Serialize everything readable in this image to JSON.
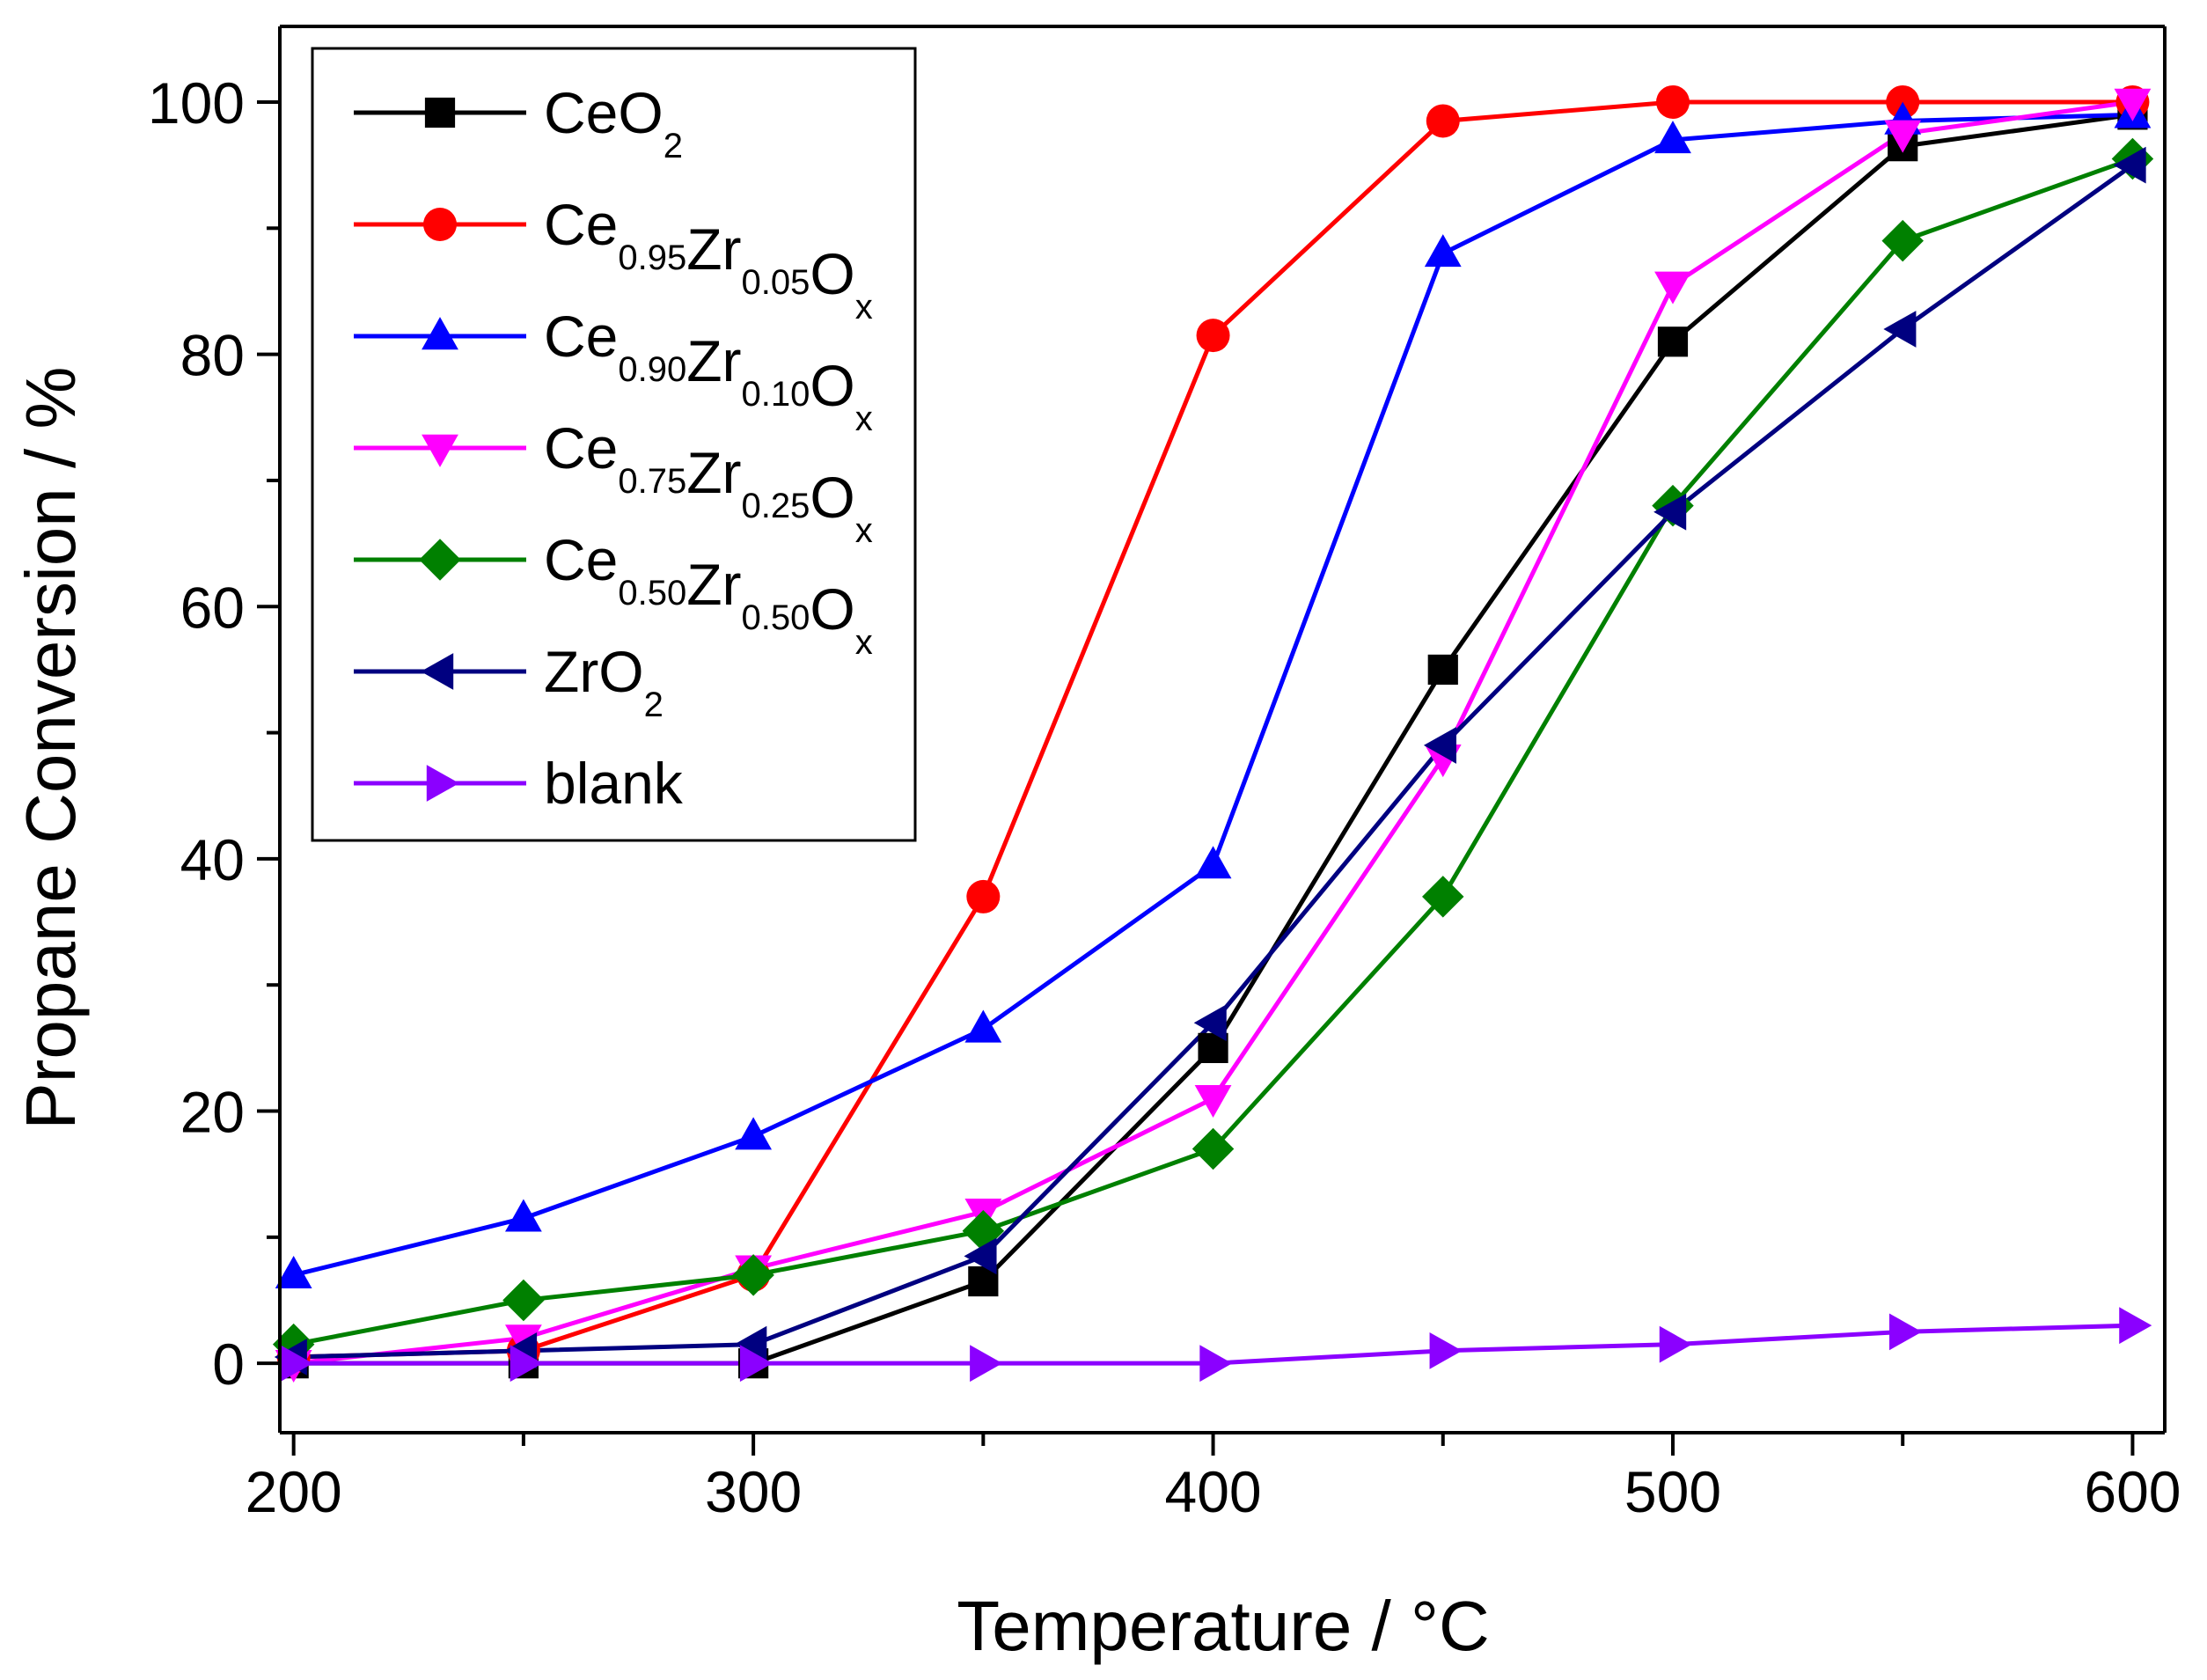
{
  "chart_data": {
    "type": "line",
    "title": "",
    "xlabel": "Temperature / °C",
    "ylabel": "Propane Conversion / %",
    "xlim": [
      197,
      607
    ],
    "ylim": [
      -5.5,
      106
    ],
    "xticks": [
      200,
      300,
      400,
      500,
      600
    ],
    "xticks_minor": [
      250,
      350,
      450,
      550
    ],
    "yticks": [
      0,
      20,
      40,
      60,
      80,
      100
    ],
    "yticks_minor": [
      10,
      30,
      50,
      70,
      90
    ],
    "x": [
      200,
      250,
      300,
      350,
      400,
      450,
      500,
      550,
      600
    ],
    "legend_position": "top-left",
    "series": [
      {
        "name": "CeO2",
        "label": [
          {
            "t": "CeO"
          },
          {
            "t": "2",
            "sub": true
          }
        ],
        "color": "#000000",
        "marker": "square",
        "values": [
          0,
          0,
          0,
          6.5,
          25,
          55,
          81,
          96.5,
          99
        ]
      },
      {
        "name": "Ce0.95Zr0.05Ox",
        "label": [
          {
            "t": "Ce"
          },
          {
            "t": "0.95",
            "sub": true
          },
          {
            "t": "Zr"
          },
          {
            "t": "0.05",
            "sub": true
          },
          {
            "t": "O"
          },
          {
            "t": "x",
            "sub": true
          }
        ],
        "color": "#ff0000",
        "marker": "circle",
        "values": [
          0.5,
          1,
          7,
          37,
          81.5,
          98.5,
          100,
          100,
          100
        ]
      },
      {
        "name": "Ce0.90Zr0.10Ox",
        "label": [
          {
            "t": "Ce"
          },
          {
            "t": "0.90",
            "sub": true
          },
          {
            "t": "Zr"
          },
          {
            "t": "0.10",
            "sub": true
          },
          {
            "t": "O"
          },
          {
            "t": "x",
            "sub": true
          }
        ],
        "color": "#0000ff",
        "marker": "triangle-up",
        "values": [
          7,
          11.5,
          18,
          26.5,
          39.5,
          88,
          97,
          98.5,
          99
        ]
      },
      {
        "name": "Ce0.75Zr0.25Ox",
        "label": [
          {
            "t": "Ce"
          },
          {
            "t": "0.75",
            "sub": true
          },
          {
            "t": "Zr"
          },
          {
            "t": "0.25",
            "sub": true
          },
          {
            "t": "O"
          },
          {
            "t": "x",
            "sub": true
          }
        ],
        "color": "#ff00ff",
        "marker": "triangle-down",
        "values": [
          0,
          2,
          7.5,
          12,
          21,
          48,
          85.5,
          97.5,
          100
        ]
      },
      {
        "name": "Ce0.50Zr0.50Ox",
        "label": [
          {
            "t": "Ce"
          },
          {
            "t": "0.50",
            "sub": true
          },
          {
            "t": "Zr"
          },
          {
            "t": "0.50",
            "sub": true
          },
          {
            "t": "O"
          },
          {
            "t": "x",
            "sub": true
          }
        ],
        "color": "#008000",
        "marker": "diamond",
        "values": [
          1.5,
          5,
          7,
          10.5,
          17,
          37,
          68,
          89,
          95.5
        ]
      },
      {
        "name": "ZrO2",
        "label": [
          {
            "t": "ZrO"
          },
          {
            "t": "2",
            "sub": true
          }
        ],
        "color": "#000080",
        "marker": "triangle-left",
        "values": [
          0.5,
          1,
          1.5,
          8.5,
          27,
          49,
          67.5,
          82,
          95
        ]
      },
      {
        "name": "blank",
        "label": [
          {
            "t": "blank"
          }
        ],
        "color": "#8b00ff",
        "marker": "triangle-right",
        "values": [
          0,
          0,
          0,
          0,
          0,
          1,
          1.5,
          2.5,
          3
        ]
      }
    ]
  }
}
